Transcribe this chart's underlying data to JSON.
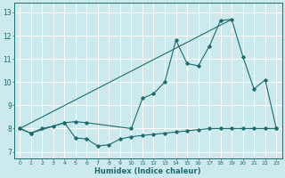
{
  "title": "",
  "xlabel": "Humidex (Indice chaleur)",
  "xlim": [
    -0.5,
    23.5
  ],
  "ylim": [
    6.7,
    13.4
  ],
  "xticks": [
    0,
    1,
    2,
    3,
    4,
    5,
    6,
    7,
    8,
    9,
    10,
    11,
    12,
    13,
    14,
    15,
    16,
    17,
    18,
    19,
    20,
    21,
    22,
    23
  ],
  "yticks": [
    7,
    8,
    9,
    10,
    11,
    12,
    13
  ],
  "bg_color": "#cce9ee",
  "line_color": "#1e6b6b",
  "grid_color": "#ffffff",
  "line1_x": [
    0,
    1,
    2,
    3,
    4,
    5,
    6,
    10,
    11,
    12,
    13,
    14,
    15,
    16,
    17,
    18,
    19,
    20,
    21,
    22,
    23
  ],
  "line1_y": [
    8.0,
    7.8,
    8.0,
    8.1,
    8.25,
    8.3,
    8.25,
    8.0,
    9.3,
    9.5,
    10.0,
    11.8,
    10.8,
    10.7,
    11.55,
    12.65,
    12.7,
    11.1,
    9.7,
    10.1,
    8.0
  ],
  "line2_x": [
    0,
    1,
    4,
    5,
    6,
    7,
    8,
    9,
    10,
    11,
    12,
    13,
    14,
    15,
    16,
    17,
    18,
    19,
    20,
    21,
    22,
    23
  ],
  "line2_y": [
    8.0,
    7.8,
    8.25,
    7.6,
    7.55,
    7.25,
    7.3,
    7.55,
    7.65,
    7.7,
    7.75,
    7.8,
    7.85,
    7.9,
    7.95,
    8.0,
    8.0,
    8.0,
    8.0,
    8.0,
    8.0,
    8.0
  ],
  "line3_x": [
    0,
    19
  ],
  "line3_y": [
    8.0,
    12.7
  ]
}
